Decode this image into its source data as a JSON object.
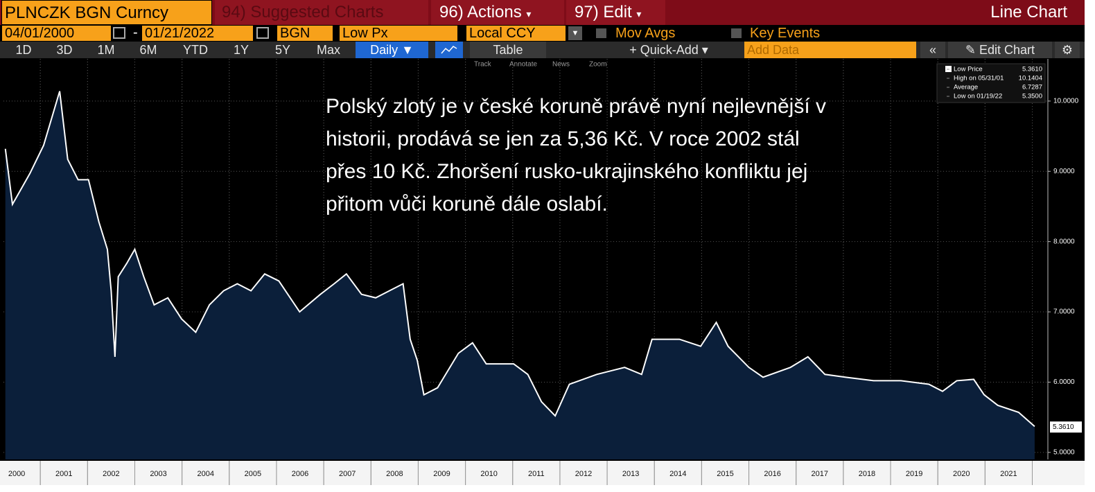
{
  "header": {
    "ticker": "PLNCZK BGN Curncy",
    "suggested_num": "94)",
    "suggested": "Suggested Charts",
    "actions_num": "96)",
    "actions": "Actions",
    "edit_num": "97)",
    "edit": "Edit",
    "chart_kind": "Line Chart"
  },
  "controls": {
    "start_date": "04/01/2000",
    "dash": "-",
    "end_date": "01/21/2022",
    "source": "BGN",
    "field": "Low Px",
    "currency": "Local CCY",
    "mov_avgs": "Mov Avgs",
    "key_events": "Key Events"
  },
  "toolbar": {
    "ranges": [
      "1D",
      "3D",
      "1M",
      "6M",
      "YTD",
      "1Y",
      "5Y",
      "Max"
    ],
    "period": "Daily",
    "table": "Table",
    "quick_add": "Quick-Add",
    "add_data": "Add Data",
    "edit_chart": "Edit Chart"
  },
  "tools": [
    "Track",
    "Annotate",
    "News",
    "Zoom"
  ],
  "chart_data": {
    "type": "line",
    "annotation": [
      "Polský zlotý je v české koruně právě nyní nejlevnější v",
      "historii, prodává se jen za 5,36 Kč. V roce 2002 stál",
      "přes 10 Kč. Zhoršení rusko-ukrajinského konfliktu jej",
      "přitom vůči koruně dále oslabí."
    ],
    "x": [
      2000.26,
      2000.41,
      2000.78,
      2001.07,
      2001.41,
      2001.58,
      2001.8,
      2002.02,
      2002.24,
      2002.42,
      2002.5,
      2002.58,
      2002.65,
      2002.83,
      2003.0,
      2003.19,
      2003.41,
      2003.7,
      2003.99,
      2004.29,
      2004.58,
      2004.88,
      2005.17,
      2005.46,
      2005.75,
      2006.05,
      2006.49,
      2006.93,
      2007.22,
      2007.48,
      2007.8,
      2008.1,
      2008.39,
      2008.68,
      2008.83,
      2008.98,
      2009.12,
      2009.41,
      2009.85,
      2010.15,
      2010.44,
      2011.02,
      2011.32,
      2011.61,
      2011.9,
      2012.2,
      2012.78,
      2013.37,
      2013.73,
      2013.95,
      2014.53,
      2014.98,
      2015.31,
      2015.56,
      2016.0,
      2016.3,
      2016.88,
      2017.25,
      2017.61,
      2018.05,
      2018.64,
      2019.22,
      2019.81,
      2020.1,
      2020.4,
      2020.76,
      2020.98,
      2021.27,
      2021.71,
      2022.05
    ],
    "series": [
      {
        "name": "Low Price",
        "color": "#ffffff",
        "fill": "#0b1f3a",
        "values": [
          9.32,
          8.53,
          8.97,
          9.37,
          10.14,
          9.17,
          8.88,
          8.88,
          8.28,
          7.89,
          7.3,
          6.36,
          7.5,
          7.69,
          7.89,
          7.5,
          7.1,
          7.2,
          6.9,
          6.71,
          7.1,
          7.3,
          7.4,
          7.3,
          7.54,
          7.44,
          7.0,
          7.25,
          7.4,
          7.54,
          7.25,
          7.2,
          7.3,
          7.4,
          6.61,
          6.31,
          5.82,
          5.92,
          6.41,
          6.56,
          6.26,
          6.26,
          6.11,
          5.72,
          5.52,
          5.97,
          6.11,
          6.21,
          6.11,
          6.61,
          6.61,
          6.51,
          6.85,
          6.51,
          6.21,
          6.07,
          6.21,
          6.36,
          6.11,
          6.07,
          6.02,
          6.02,
          5.97,
          5.87,
          6.02,
          6.04,
          5.82,
          5.67,
          5.57,
          5.37
        ]
      }
    ],
    "xlim": [
      2000.22,
      2022.33
    ],
    "xticks": [
      2000,
      2001,
      2002,
      2003,
      2004,
      2005,
      2006,
      2007,
      2008,
      2009,
      2010,
      2011,
      2012,
      2013,
      2014,
      2015,
      2016,
      2017,
      2018,
      2019,
      2020,
      2021
    ],
    "ylim": [
      4.9,
      10.6
    ],
    "yticks": [
      {
        "value": 5,
        "label": "5.0000"
      },
      {
        "value": 6,
        "label": "6.0000"
      },
      {
        "value": 7,
        "label": "7.0000"
      },
      {
        "value": 8,
        "label": "8.0000"
      },
      {
        "value": 9,
        "label": "9.0000"
      },
      {
        "value": 10,
        "label": "10.0000"
      }
    ],
    "grid": true,
    "last_value": 5.361,
    "last_label": "5.3610",
    "stats": {
      "labels": [
        "Low Price",
        "High on 05/31/01",
        "Average",
        "Low on 01/19/22"
      ],
      "values": [
        5.361,
        10.1404,
        6.7287,
        5.35
      ],
      "value_labels": [
        "5.3610",
        "10.1404",
        "6.7287",
        "5.3500"
      ]
    }
  }
}
